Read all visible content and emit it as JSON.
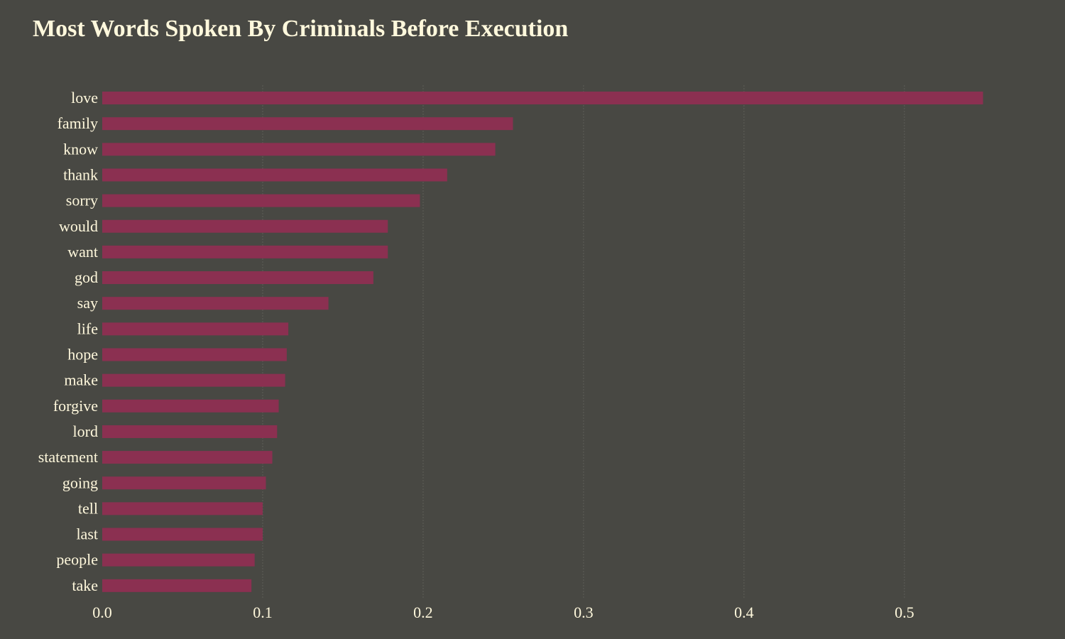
{
  "title": "Most Words Spoken By Criminals Before Execution",
  "colors": {
    "background": "#484843",
    "bar": "#8b3051",
    "text": "#fff8dc",
    "grid": "#5e5e58"
  },
  "chart_data": {
    "type": "bar",
    "orientation": "horizontal",
    "title": "Most Words Spoken By Criminals Before Execution",
    "xlabel": "",
    "ylabel": "",
    "categories": [
      "love",
      "family",
      "know",
      "thank",
      "sorry",
      "would",
      "want",
      "god",
      "say",
      "life",
      "hope",
      "make",
      "forgive",
      "lord",
      "statement",
      "going",
      "tell",
      "last",
      "people",
      "take"
    ],
    "values": [
      0.549,
      0.256,
      0.245,
      0.215,
      0.198,
      0.178,
      0.178,
      0.169,
      0.141,
      0.116,
      0.115,
      0.114,
      0.11,
      0.109,
      0.106,
      0.102,
      0.1,
      0.1,
      0.095,
      0.093
    ],
    "xlim": [
      0,
      0.57
    ],
    "xticks": [
      "0.0",
      "0.1",
      "0.2",
      "0.3",
      "0.4",
      "0.5"
    ],
    "grid": true,
    "legend": "none"
  }
}
